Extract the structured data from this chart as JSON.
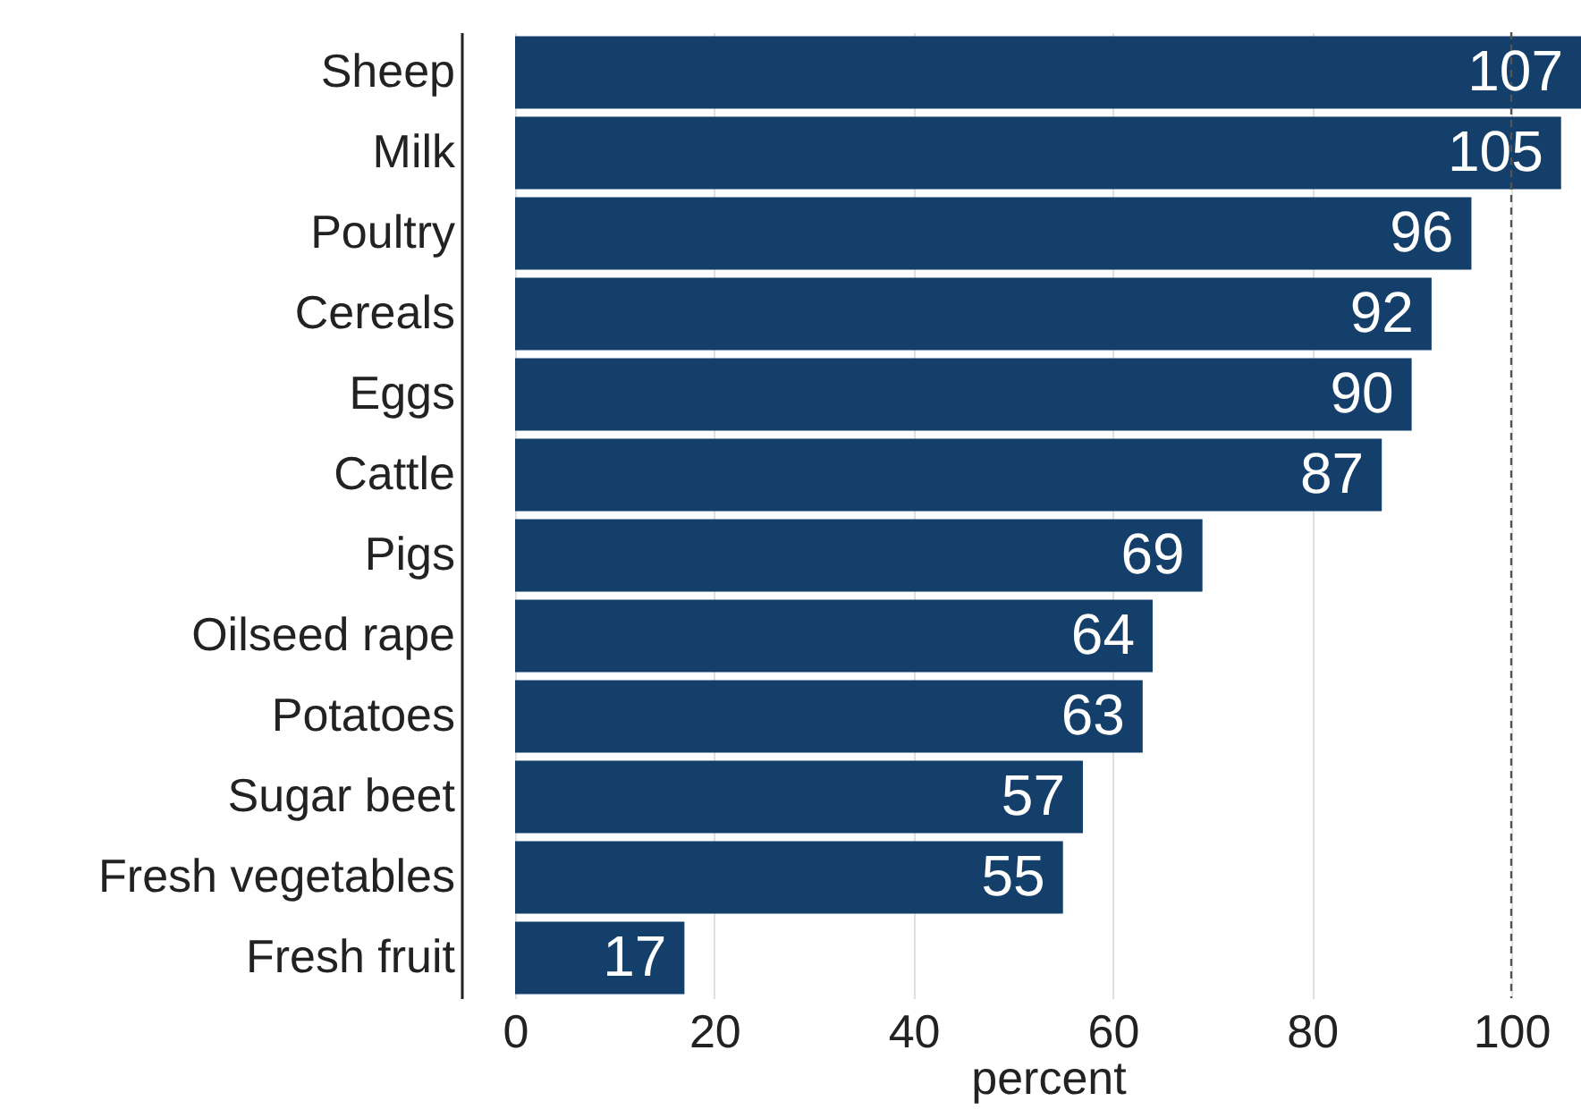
{
  "chart_data": {
    "type": "bar",
    "orientation": "horizontal",
    "categories": [
      "Sheep",
      "Milk",
      "Poultry",
      "Cereals",
      "Eggs",
      "Cattle",
      "Pigs",
      "Oilseed rape",
      "Potatoes",
      "Sugar beet",
      "Fresh vegetables",
      "Fresh fruit"
    ],
    "values": [
      107,
      105,
      96,
      92,
      90,
      87,
      69,
      64,
      63,
      57,
      55,
      17
    ],
    "color": "#133f6a",
    "xlim": [
      0,
      107
    ],
    "xticks": [
      0,
      20,
      40,
      60,
      80,
      100
    ],
    "xlabel": "percent",
    "grid": "x",
    "data_labels": true,
    "ref_lines": [
      {
        "axis": "x",
        "value": 100,
        "color": "#555555",
        "line_style": "dashed"
      }
    ]
  }
}
